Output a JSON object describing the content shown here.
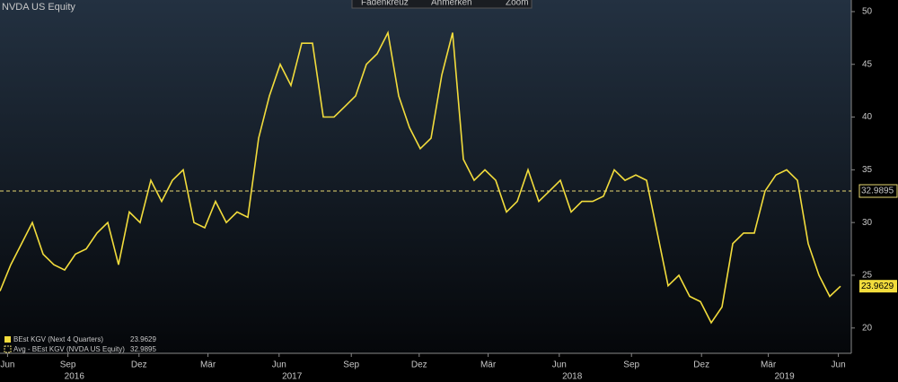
{
  "title": "NVDA US Equity",
  "toolbar": [
    "Fadenkreuz",
    "Anmerken",
    "Zoom"
  ],
  "chart_data": {
    "type": "line",
    "x": [
      0,
      1,
      2,
      3,
      4,
      5,
      6,
      7,
      8,
      9,
      10,
      11,
      12,
      13,
      14,
      15,
      16,
      17,
      18,
      19,
      20,
      21,
      22,
      23,
      24,
      25,
      26,
      27,
      28,
      29,
      30,
      31,
      32,
      33,
      34,
      35,
      36,
      37,
      38,
      39,
      40,
      41,
      42,
      43,
      44,
      45,
      46,
      47,
      48,
      49,
      50,
      51,
      52,
      53,
      54,
      55,
      56,
      57,
      58,
      59,
      60,
      61,
      62,
      63,
      64,
      65,
      66,
      67,
      68,
      69,
      70,
      71,
      72,
      73,
      74,
      75,
      76,
      77,
      78
    ],
    "series": [
      {
        "name": "BEst KGV (Next 4 Quarters)",
        "color": "#f2dc3c",
        "values": [
          23.5,
          26,
          28,
          30,
          27,
          26,
          25.5,
          27,
          27.5,
          29,
          30,
          26,
          31,
          30,
          34,
          32,
          34,
          35,
          30,
          29.5,
          32,
          30,
          31,
          30.5,
          38,
          42,
          45,
          43,
          47,
          47,
          40,
          40,
          41,
          42,
          45,
          46,
          48,
          42,
          39,
          37,
          38,
          44,
          48,
          36,
          34,
          35,
          34,
          31,
          32,
          35,
          32,
          33,
          34,
          31,
          32,
          32,
          32.5,
          35,
          34,
          34.5,
          34,
          29,
          24,
          25,
          23,
          22.5,
          20.5,
          22,
          28,
          29,
          29,
          33,
          34.5,
          35,
          34,
          28,
          25,
          23,
          23.9629
        ]
      }
    ],
    "average": {
      "name": "Avg - BEst KGV (NVDA US Equity)",
      "value": 32.9895,
      "color": "#e8d870"
    },
    "xlim": [
      0,
      79
    ],
    "xticks": [
      {
        "value": 0.7,
        "label": "Jun"
      },
      {
        "value": 6.3,
        "label": "Sep"
      },
      {
        "value": 12.9,
        "label": "Dez"
      },
      {
        "value": 19.3,
        "label": "Mär"
      },
      {
        "value": 25.9,
        "label": "Jun"
      },
      {
        "value": 32.6,
        "label": "Sep"
      },
      {
        "value": 38.9,
        "label": "Dez"
      },
      {
        "value": 45.3,
        "label": "Mär"
      },
      {
        "value": 51.9,
        "label": "Jun"
      },
      {
        "value": 58.6,
        "label": "Sep"
      },
      {
        "value": 65.1,
        "label": "Dez"
      },
      {
        "value": 71.3,
        "label": "Mär"
      },
      {
        "value": 77.8,
        "label": "Jun"
      }
    ],
    "year_ticks": [
      {
        "value": 6.9,
        "label": "2016"
      },
      {
        "value": 27.1,
        "label": "2017"
      },
      {
        "value": 53.1,
        "label": "2018"
      },
      {
        "value": 72.8,
        "label": "2019"
      }
    ],
    "ylim": [
      17.6,
      51.1
    ],
    "yticks": [
      20,
      25,
      30,
      35,
      40,
      45,
      50
    ]
  }
}
